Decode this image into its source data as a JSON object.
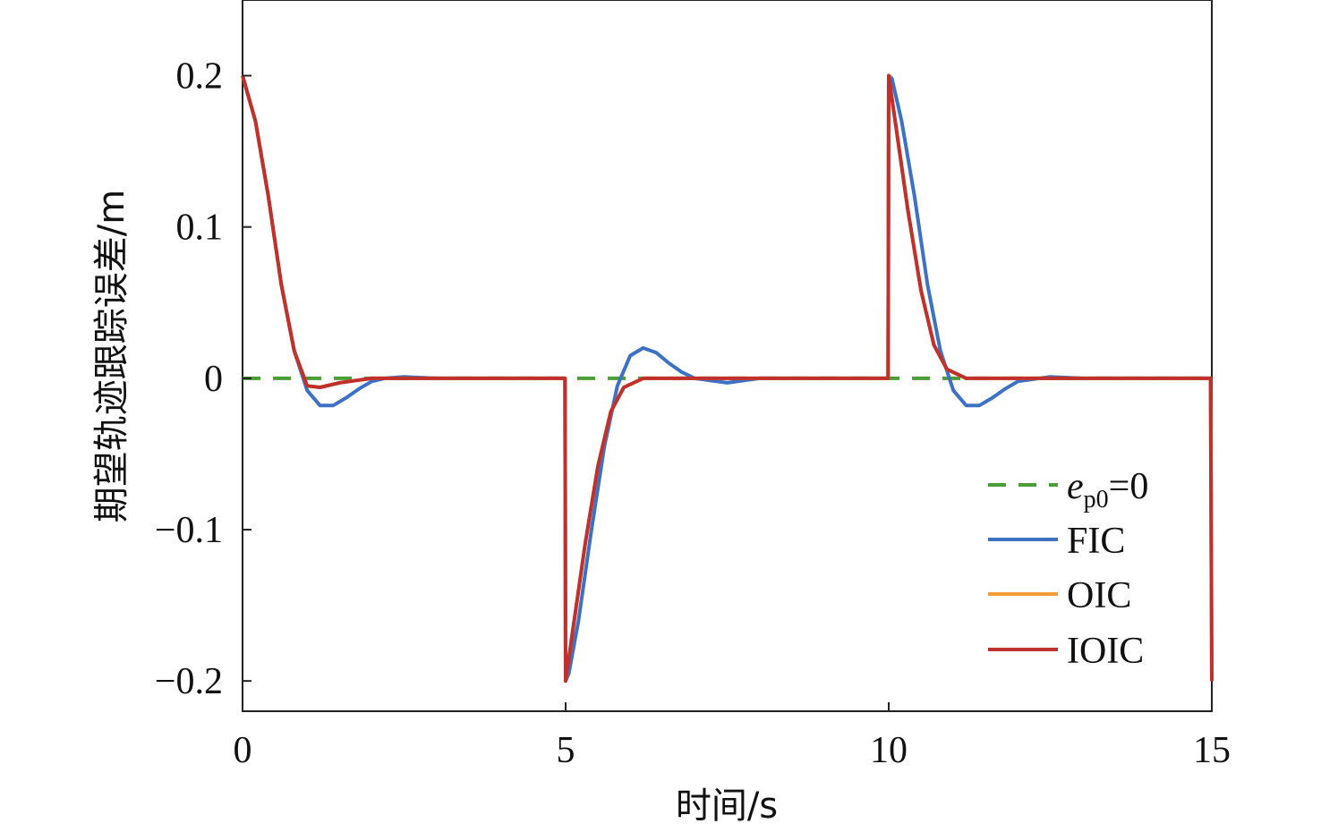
{
  "chart_data": {
    "type": "line",
    "title": "",
    "xlabel": "时间/s",
    "ylabel": "期望轨迹跟踪误差/m",
    "xlim": [
      0,
      15
    ],
    "ylim": [
      -0.22,
      0.25
    ],
    "xticks": [
      0,
      5,
      10,
      15
    ],
    "xtick_labels": [
      "0",
      "5",
      "10",
      "15"
    ],
    "yticks": [
      0.2,
      0.1,
      0,
      -0.1,
      -0.2
    ],
    "ytick_labels": [
      "0.2",
      "0.1",
      "0",
      "−0.1",
      "−0.2"
    ],
    "grid": false,
    "legend_position": "bottom-right",
    "series": [
      {
        "name_italic": "e",
        "name_sub": "p0",
        "name_rest": "=0",
        "color": "#4a9e35",
        "dash": "dashed",
        "x": [
          0,
          15
        ],
        "y": [
          0,
          0
        ]
      },
      {
        "name": "FIC",
        "color": "#3d71c4",
        "dash": "solid",
        "x": [
          0,
          0.2,
          0.4,
          0.6,
          0.8,
          1.0,
          1.2,
          1.4,
          1.6,
          1.8,
          2.0,
          2.2,
          2.5,
          3.0,
          3.5,
          4.0,
          4.5,
          4.99,
          5.0,
          5.05,
          5.2,
          5.4,
          5.6,
          5.8,
          6.0,
          6.2,
          6.4,
          6.6,
          6.8,
          7.0,
          7.5,
          8.0,
          9.0,
          9.99,
          10.0,
          10.05,
          10.2,
          10.4,
          10.6,
          10.8,
          11.0,
          11.2,
          11.4,
          11.6,
          11.8,
          12.0,
          12.5,
          13.0,
          14.0,
          14.98
        ],
        "y": [
          0.2,
          0.17,
          0.12,
          0.062,
          0.018,
          -0.008,
          -0.018,
          -0.018,
          -0.013,
          -0.007,
          -0.002,
          0.0,
          0.001,
          0.0,
          0.0,
          0.0,
          0.0,
          0.0,
          -0.2,
          -0.195,
          -0.16,
          -0.1,
          -0.045,
          -0.005,
          0.015,
          0.02,
          0.017,
          0.01,
          0.004,
          0.0,
          -0.003,
          0.0,
          0.0,
          0.0,
          0.2,
          0.198,
          0.17,
          0.12,
          0.062,
          0.018,
          -0.008,
          -0.018,
          -0.018,
          -0.013,
          -0.007,
          -0.002,
          0.001,
          0.0,
          0.0,
          0.0
        ]
      },
      {
        "name": "OIC",
        "color": "#f29b38",
        "dash": "solid",
        "x": [
          0,
          0.2,
          0.4,
          0.6,
          0.8,
          1.0,
          1.2,
          1.5,
          2.0,
          3.0,
          4.99,
          5.0,
          5.1,
          5.3,
          5.5,
          5.7,
          5.9,
          6.2,
          6.6,
          7.0,
          9.99,
          10.0,
          10.1,
          10.3,
          10.5,
          10.7,
          10.9,
          11.2,
          11.6,
          12.0,
          14.98,
          15.0
        ],
        "y": [
          0.2,
          0.17,
          0.12,
          0.062,
          0.018,
          -0.005,
          -0.006,
          -0.003,
          0.0,
          0.0,
          0.0,
          -0.2,
          -0.17,
          -0.11,
          -0.058,
          -0.022,
          -0.006,
          0.0,
          0.0,
          0.0,
          0.0,
          0.2,
          0.17,
          0.11,
          0.058,
          0.022,
          0.006,
          0.0,
          0.0,
          0.0,
          0.0,
          -0.2
        ]
      },
      {
        "name": "IOIC",
        "color": "#c0302c",
        "dash": "solid",
        "x": [
          0,
          0.2,
          0.4,
          0.6,
          0.8,
          1.0,
          1.2,
          1.5,
          2.0,
          3.0,
          4.99,
          5.0,
          5.1,
          5.3,
          5.5,
          5.7,
          5.9,
          6.2,
          6.6,
          7.0,
          9.99,
          10.0,
          10.1,
          10.3,
          10.5,
          10.7,
          10.9,
          11.2,
          11.6,
          12.0,
          14.98,
          15.0
        ],
        "y": [
          0.2,
          0.17,
          0.12,
          0.062,
          0.018,
          -0.005,
          -0.006,
          -0.003,
          0.0,
          0.0,
          0.0,
          -0.2,
          -0.17,
          -0.11,
          -0.058,
          -0.022,
          -0.006,
          0.0,
          0.0,
          0.0,
          0.0,
          0.2,
          0.17,
          0.11,
          0.058,
          0.022,
          0.006,
          0.0,
          0.0,
          0.0,
          0.0,
          -0.2
        ]
      }
    ]
  }
}
